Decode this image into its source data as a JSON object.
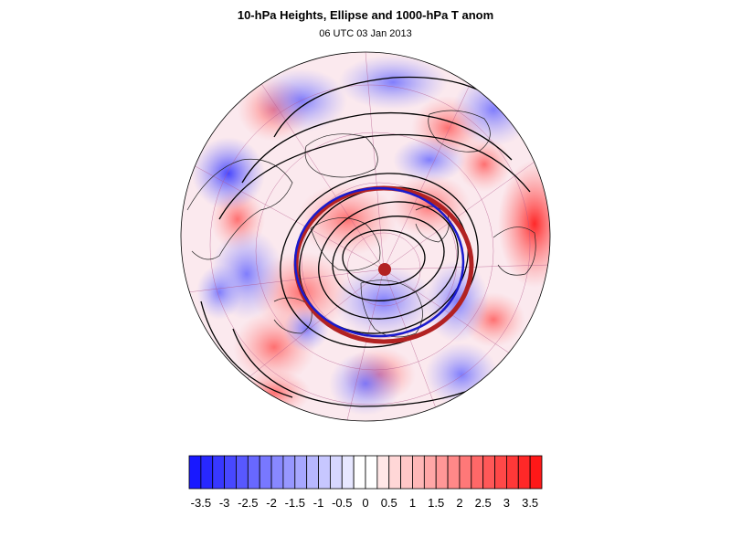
{
  "title": "10-hPa Heights, Ellipse and 1000-hPa T anom",
  "subtitle": "06 UTC 03 Jan 2013",
  "colors": {
    "cold_max": "#1010ff",
    "warm_max": "#ff1010",
    "ellipse_outer": "#b22222",
    "ellipse_inner": "#1a1acc",
    "center_marker": "#b22222",
    "contour": "#000000",
    "coast": "#222222",
    "grid": "#b45a8c"
  },
  "colorbar": {
    "levels": [
      -3.75,
      -3.5,
      -3.25,
      -3,
      -2.75,
      -2.5,
      -2.25,
      -2,
      -1.75,
      -1.5,
      -1.25,
      -1,
      -0.75,
      -0.5,
      -0.25,
      0,
      0.25,
      0.5,
      0.75,
      1,
      1.25,
      1.5,
      1.75,
      2,
      2.25,
      2.5,
      2.75,
      3,
      3.25,
      3.5,
      3.75
    ],
    "labels": [
      "-3.5",
      "-3",
      "-2.5",
      "-2",
      "-1.5",
      "-1",
      "-0.5",
      "0",
      "0.5",
      "1",
      "1.5",
      "2",
      "2.5",
      "3",
      "3.5"
    ],
    "label_values": [
      -3.5,
      -3,
      -2.5,
      -2,
      -1.5,
      -1,
      -0.5,
      0,
      0.5,
      1,
      1.5,
      2,
      2.5,
      3,
      3.5
    ]
  }
}
